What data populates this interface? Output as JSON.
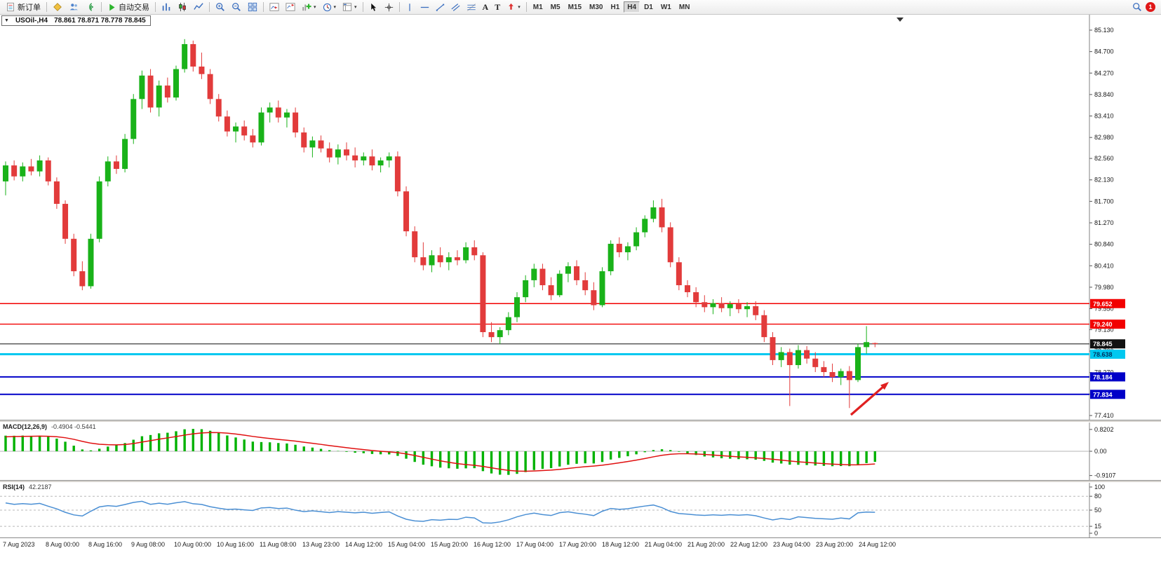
{
  "toolbar": {
    "new_order": "新订单",
    "auto_trading": "自动交易",
    "text_tool": "A",
    "label_tool": "T",
    "timeframes": [
      "M1",
      "M5",
      "M15",
      "M30",
      "H1",
      "H4",
      "D1",
      "W1",
      "MN"
    ],
    "active_timeframe": "H4",
    "notification_count": "1"
  },
  "chart": {
    "symbol_tf": "USOil-,H4",
    "ohlc_text": "78.861 78.871 78.778 78.845"
  },
  "macd_panel": {
    "label": "MACD(12,26,9)",
    "values": "-0.4904 -0.5441"
  },
  "rsi_panel": {
    "label": "RSI(14)",
    "value": "42.2187"
  },
  "chart_data": {
    "type": "candlestick",
    "symbol": "USOil-",
    "timeframe": "H4",
    "current_bar": {
      "open": 78.861,
      "high": 78.871,
      "low": 78.778,
      "close": 78.845
    },
    "price_axis": {
      "max": 85.13,
      "min": 77.41,
      "labels": [
        "85.130",
        "84.700",
        "84.270",
        "83.840",
        "83.410",
        "82.980",
        "82.560",
        "82.130",
        "81.700",
        "81.270",
        "80.840",
        "80.410",
        "79.980",
        "79.550",
        "79.130",
        "78.700",
        "78.270",
        "77.840",
        "77.410"
      ]
    },
    "hlines": [
      {
        "price": 79.652,
        "color": "#f20000",
        "width": 1.4,
        "tag": "79.652",
        "tag_bg": "#f20000",
        "tag_fg": "#ffffff"
      },
      {
        "price": 79.24,
        "color": "#f20000",
        "width": 1.4,
        "tag": "79.240",
        "tag_bg": "#f20000",
        "tag_fg": "#ffffff"
      },
      {
        "price": 78.845,
        "color": "#3d3d3d",
        "width": 1.2,
        "tag": "78.845",
        "tag_bg": "#111111",
        "tag_fg": "#ffffff"
      },
      {
        "price": 78.638,
        "color": "#00c8f0",
        "width": 3,
        "tag": "78.638",
        "tag_bg": "#00c8f0",
        "tag_fg": "#00315e"
      },
      {
        "price": 78.184,
        "color": "#0000c8",
        "width": 2,
        "tag": "78.184",
        "tag_bg": "#0000c8",
        "tag_fg": "#ffffff"
      },
      {
        "price": 77.834,
        "color": "#0000c8",
        "width": 2,
        "tag": "77.834",
        "tag_bg": "#0000c8",
        "tag_fg": "#ffffff"
      }
    ],
    "colors": {
      "up": "#19b219",
      "down": "#e23b3b",
      "macd_hist": "#00b200",
      "macd_signal": "#e01010",
      "rsi_line": "#4a8fd4"
    },
    "candles": [
      [
        82.1,
        82.5,
        81.82,
        82.42
      ],
      [
        82.42,
        82.52,
        82.12,
        82.2
      ],
      [
        82.2,
        82.48,
        82.1,
        82.4
      ],
      [
        82.4,
        82.55,
        82.22,
        82.3
      ],
      [
        82.3,
        82.62,
        82.2,
        82.52
      ],
      [
        82.52,
        82.58,
        82.02,
        82.1
      ],
      [
        82.1,
        82.18,
        81.55,
        81.65
      ],
      [
        81.65,
        81.72,
        80.85,
        80.95
      ],
      [
        80.95,
        81.05,
        80.2,
        80.3
      ],
      [
        80.3,
        80.5,
        79.92,
        80.0
      ],
      [
        80.0,
        81.05,
        79.95,
        80.95
      ],
      [
        80.95,
        82.2,
        80.88,
        82.1
      ],
      [
        82.1,
        82.6,
        82.0,
        82.5
      ],
      [
        82.5,
        82.62,
        82.25,
        82.35
      ],
      [
        82.35,
        83.05,
        82.28,
        82.95
      ],
      [
        82.95,
        83.85,
        82.85,
        83.75
      ],
      [
        83.75,
        84.32,
        83.55,
        84.22
      ],
      [
        84.22,
        84.35,
        83.48,
        83.58
      ],
      [
        83.58,
        84.12,
        83.4,
        84.02
      ],
      [
        84.02,
        84.18,
        83.68,
        83.78
      ],
      [
        83.78,
        84.42,
        83.72,
        84.35
      ],
      [
        84.35,
        84.95,
        84.28,
        84.85
      ],
      [
        84.85,
        84.92,
        84.3,
        84.4
      ],
      [
        84.4,
        84.68,
        84.15,
        84.25
      ],
      [
        84.25,
        84.35,
        83.65,
        83.75
      ],
      [
        83.75,
        83.85,
        83.3,
        83.4
      ],
      [
        83.4,
        83.52,
        83.0,
        83.1
      ],
      [
        83.1,
        83.28,
        82.88,
        83.2
      ],
      [
        83.2,
        83.32,
        82.92,
        83.02
      ],
      [
        83.02,
        83.15,
        82.78,
        82.88
      ],
      [
        82.88,
        83.58,
        82.82,
        83.48
      ],
      [
        83.48,
        83.68,
        83.28,
        83.58
      ],
      [
        83.58,
        83.72,
        83.28,
        83.38
      ],
      [
        83.38,
        83.55,
        83.18,
        83.48
      ],
      [
        83.48,
        83.58,
        82.98,
        83.08
      ],
      [
        83.08,
        83.18,
        82.68,
        82.78
      ],
      [
        82.78,
        83.0,
        82.58,
        82.92
      ],
      [
        82.92,
        83.02,
        82.68,
        82.76
      ],
      [
        82.76,
        82.88,
        82.48,
        82.58
      ],
      [
        82.58,
        82.84,
        82.44,
        82.74
      ],
      [
        82.74,
        82.88,
        82.52,
        82.62
      ],
      [
        82.62,
        82.78,
        82.38,
        82.52
      ],
      [
        82.52,
        82.68,
        82.42,
        82.6
      ],
      [
        82.6,
        82.74,
        82.32,
        82.42
      ],
      [
        82.42,
        82.58,
        82.28,
        82.52
      ],
      [
        82.52,
        82.68,
        82.38,
        82.6
      ],
      [
        82.6,
        82.7,
        81.8,
        81.9
      ],
      [
        81.9,
        82.0,
        81.0,
        81.1
      ],
      [
        81.1,
        81.2,
        80.48,
        80.58
      ],
      [
        80.58,
        80.88,
        80.32,
        80.42
      ],
      [
        80.42,
        80.72,
        80.28,
        80.62
      ],
      [
        80.62,
        80.78,
        80.38,
        80.48
      ],
      [
        80.48,
        80.68,
        80.32,
        80.58
      ],
      [
        80.58,
        80.72,
        80.42,
        80.52
      ],
      [
        80.52,
        80.88,
        80.46,
        80.78
      ],
      [
        80.78,
        80.92,
        80.52,
        80.62
      ],
      [
        80.62,
        80.68,
        78.98,
        79.08
      ],
      [
        79.08,
        79.28,
        78.88,
        78.98
      ],
      [
        78.98,
        79.18,
        78.84,
        79.12
      ],
      [
        79.12,
        79.48,
        79.02,
        79.38
      ],
      [
        79.38,
        79.88,
        79.28,
        79.78
      ],
      [
        79.78,
        80.22,
        79.68,
        80.12
      ],
      [
        80.12,
        80.45,
        79.98,
        80.35
      ],
      [
        80.35,
        80.45,
        79.92,
        80.02
      ],
      [
        80.02,
        80.18,
        79.72,
        79.82
      ],
      [
        79.82,
        80.32,
        79.78,
        80.25
      ],
      [
        80.25,
        80.48,
        80.08,
        80.4
      ],
      [
        80.4,
        80.52,
        80.02,
        80.12
      ],
      [
        80.12,
        80.28,
        79.82,
        79.92
      ],
      [
        79.92,
        80.08,
        79.52,
        79.62
      ],
      [
        79.62,
        80.38,
        79.58,
        80.3
      ],
      [
        80.3,
        80.92,
        80.22,
        80.85
      ],
      [
        80.85,
        80.98,
        80.58,
        80.68
      ],
      [
        80.68,
        80.88,
        80.52,
        80.8
      ],
      [
        80.8,
        81.18,
        80.72,
        81.08
      ],
      [
        81.08,
        81.42,
        80.98,
        81.35
      ],
      [
        81.35,
        81.72,
        81.28,
        81.58
      ],
      [
        81.58,
        81.75,
        81.08,
        81.18
      ],
      [
        81.18,
        81.28,
        80.38,
        80.48
      ],
      [
        80.48,
        80.58,
        79.92,
        80.02
      ],
      [
        80.02,
        80.12,
        79.78,
        79.88
      ],
      [
        79.88,
        79.98,
        79.58,
        79.68
      ],
      [
        79.68,
        79.82,
        79.48,
        79.58
      ],
      [
        79.58,
        79.74,
        79.44,
        79.66
      ],
      [
        79.66,
        79.78,
        79.48,
        79.56
      ],
      [
        79.56,
        79.7,
        79.4,
        79.64
      ],
      [
        79.64,
        79.74,
        79.46,
        79.54
      ],
      [
        79.54,
        79.68,
        79.38,
        79.6
      ],
      [
        79.6,
        79.7,
        79.32,
        79.42
      ],
      [
        79.42,
        79.52,
        78.88,
        78.98
      ],
      [
        78.98,
        79.08,
        78.42,
        78.52
      ],
      [
        78.52,
        78.78,
        78.38,
        78.68
      ],
      [
        78.68,
        78.75,
        77.6,
        78.42
      ],
      [
        78.42,
        78.82,
        78.35,
        78.72
      ],
      [
        78.72,
        78.8,
        78.45,
        78.55
      ],
      [
        78.55,
        78.68,
        78.28,
        78.38
      ],
      [
        78.38,
        78.5,
        78.18,
        78.28
      ],
      [
        78.28,
        78.45,
        78.08,
        78.18
      ],
      [
        78.18,
        78.35,
        78.02,
        78.3
      ],
      [
        78.3,
        78.4,
        77.56,
        78.12
      ],
      [
        78.12,
        78.85,
        78.08,
        78.78
      ],
      [
        78.78,
        79.2,
        78.65,
        78.88
      ],
      [
        78.861,
        78.871,
        78.778,
        78.845
      ]
    ],
    "time_labels": [
      "7 Aug 2023",
      "8 Aug 00:00",
      "8 Aug 16:00",
      "9 Aug 08:00",
      "10 Aug 00:00",
      "10 Aug 16:00",
      "11 Aug 08:00",
      "13 Aug 23:00",
      "14 Aug 12:00",
      "15 Aug 04:00",
      "15 Aug 20:00",
      "16 Aug 12:00",
      "17 Aug 04:00",
      "17 Aug 20:00",
      "18 Aug 12:00",
      "21 Aug 04:00",
      "21 Aug 20:00",
      "22 Aug 12:00",
      "23 Aug 04:00",
      "23 Aug 20:00",
      "24 Aug 12:00"
    ],
    "macd": {
      "label": "MACD(12,26,9)",
      "values": "-0.4904 -0.5441",
      "params": [
        12,
        26,
        9
      ],
      "axis": [
        {
          "text": "0.8202",
          "v": 0.8202
        },
        {
          "text": "0.00",
          "v": 0
        },
        {
          "text": "-0.9107",
          "v": -0.9107
        }
      ]
    },
    "rsi": {
      "label": "RSI(14)",
      "value": "42.2187",
      "period": 14,
      "axis": [
        {
          "text": "100",
          "v": 100
        },
        {
          "text": "80",
          "v": 80
        },
        {
          "text": "50",
          "v": 50
        },
        {
          "text": "15",
          "v": 15
        },
        {
          "text": "0",
          "v": 0
        }
      ],
      "levels": [
        80,
        50,
        15
      ]
    },
    "arrow": {
      "tail": [
        1213,
        571
      ],
      "head": [
        1267,
        524
      ],
      "color": "#e02020"
    }
  }
}
